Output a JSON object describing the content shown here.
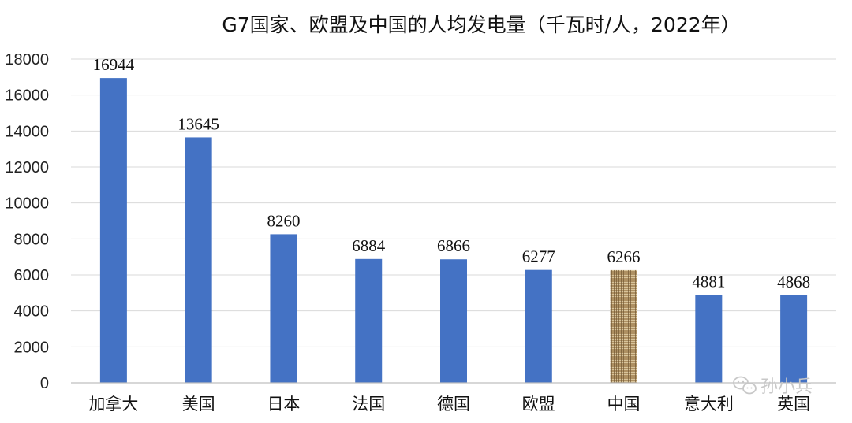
{
  "chart_data": {
    "type": "bar",
    "title": "G7国家、欧盟及中国的人均发电量（千瓦时/人，2022年）",
    "xlabel": "",
    "ylabel": "",
    "categories": [
      "加拿大",
      "美国",
      "日本",
      "法国",
      "德国",
      "欧盟",
      "中国",
      "意大利",
      "英国"
    ],
    "values": [
      16944,
      13645,
      8260,
      6884,
      6866,
      6277,
      6266,
      4881,
      4868
    ],
    "ylim": [
      0,
      18000
    ],
    "yticks": [
      0,
      2000,
      4000,
      6000,
      8000,
      10000,
      12000,
      14000,
      16000,
      18000
    ],
    "grid": true,
    "colors": {
      "bar": "#4472c4",
      "highlight_texture": "#a8895a",
      "highlight_texture_dark": "#6e5430",
      "highlight_texture_light": "#d8c49b"
    },
    "highlight_category": "中国",
    "data_labels": true
  },
  "watermark": {
    "text": "孙小兵",
    "icon": "wechat-icon"
  }
}
